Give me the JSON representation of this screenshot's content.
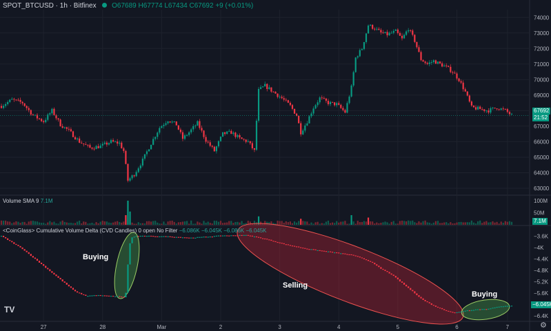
{
  "header": {
    "symbol": "SPOT_BTCUSD · 1h · Bitfinex",
    "open": "O67689",
    "high": "H67774",
    "low": "L67434",
    "close": "C67692",
    "change": "+9 (+0.01%)"
  },
  "volume_pane": {
    "label": "Volume SMA 9",
    "value": "7.1M",
    "tag": "7.1M"
  },
  "cvd_pane": {
    "label": "<CoinGlass> Cumulative Volume Delta (CVD Candles) 0 open No Filter",
    "values": [
      "−6.086K",
      "−6.045K",
      "−6.086K",
      "−6.045K"
    ],
    "tag": "−6.045K"
  },
  "price_tags": {
    "last": "67692",
    "countdown": "21:52"
  },
  "annotations": {
    "buying_left": "Buying",
    "selling": "Selling",
    "buying_right": "Buying"
  },
  "colors": {
    "up": "#089981",
    "down": "#f23645",
    "background": "#131722",
    "grid": "#1e222d",
    "last_line": "#089981"
  },
  "logo": "TV",
  "chart_data": [
    {
      "type": "candlestick",
      "title": "SPOT_BTCUSD · 1h · Bitfinex",
      "x_labels": [
        "27",
        "28",
        "Mar",
        "2",
        "3",
        "4",
        "5",
        "6",
        "7"
      ],
      "y_ticks": [
        63000,
        64000,
        65000,
        66000,
        67000,
        68000,
        69000,
        70000,
        71000,
        72000,
        73000,
        74000
      ],
      "ylim": [
        62600,
        74500
      ],
      "path_close": [
        [
          0,
          68300
        ],
        [
          5,
          68700
        ],
        [
          10,
          68500
        ],
        [
          15,
          67700
        ],
        [
          20,
          67300
        ],
        [
          24,
          68000
        ],
        [
          28,
          67100
        ],
        [
          32,
          66700
        ],
        [
          37,
          66000
        ],
        [
          42,
          65600
        ],
        [
          47,
          65700
        ],
        [
          52,
          66000
        ],
        [
          56,
          65900
        ],
        [
          58,
          65400
        ],
        [
          60,
          63500
        ],
        [
          63,
          63900
        ],
        [
          67,
          64800
        ],
        [
          71,
          65900
        ],
        [
          75,
          66900
        ],
        [
          79,
          67400
        ],
        [
          83,
          67100
        ],
        [
          86,
          66200
        ],
        [
          89,
          66600
        ],
        [
          93,
          67200
        ],
        [
          97,
          66100
        ],
        [
          101,
          65400
        ],
        [
          105,
          66500
        ],
        [
          109,
          66600
        ],
        [
          113,
          66200
        ],
        [
          117,
          66000
        ],
        [
          120,
          65400
        ],
        [
          122,
          69300
        ],
        [
          125,
          69600
        ],
        [
          129,
          69200
        ],
        [
          133,
          68800
        ],
        [
          137,
          68300
        ],
        [
          140,
          67700
        ],
        [
          142,
          66600
        ],
        [
          145,
          67300
        ],
        [
          148,
          68200
        ],
        [
          151,
          68800
        ],
        [
          155,
          68500
        ],
        [
          159,
          68400
        ],
        [
          163,
          67900
        ],
        [
          166,
          69500
        ],
        [
          168,
          71400
        ],
        [
          171,
          72000
        ],
        [
          174,
          73500
        ],
        [
          177,
          73300
        ],
        [
          180,
          73000
        ],
        [
          183,
          72900
        ],
        [
          187,
          73100
        ],
        [
          190,
          72600
        ],
        [
          193,
          73300
        ],
        [
          196,
          72500
        ],
        [
          199,
          71300
        ],
        [
          202,
          71000
        ],
        [
          205,
          71200
        ],
        [
          208,
          71000
        ],
        [
          211,
          70800
        ],
        [
          214,
          70500
        ],
        [
          217,
          70000
        ],
        [
          220,
          69200
        ],
        [
          223,
          68200
        ],
        [
          227,
          68100
        ],
        [
          231,
          68000
        ],
        [
          235,
          68200
        ],
        [
          239,
          68000
        ],
        [
          242,
          67700
        ]
      ]
    },
    {
      "type": "bar",
      "title": "Volume SMA 9",
      "y_ticks": [
        "50M",
        "100M"
      ],
      "ylim": [
        0,
        120
      ],
      "units": "M",
      "spikes": [
        [
          60,
          100
        ],
        [
          61,
          55
        ],
        [
          59,
          40
        ],
        [
          122,
          35
        ],
        [
          166,
          40
        ],
        [
          174,
          30
        ],
        [
          142,
          25
        ]
      ]
    },
    {
      "type": "candlestick",
      "title": "<CoinGlass> Cumulative Volume Delta (CVD Candles) 0 open No Filter",
      "y_ticks": [
        -3.6,
        -4.0,
        -4.4,
        -4.8,
        -5.2,
        -5.6,
        -6.0,
        -6.4
      ],
      "y_tick_labels": [
        "−3.6K",
        "−4K",
        "−4.4K",
        "−4.8K",
        "−5.2K",
        "−5.6K",
        "−6K",
        "−6.4K"
      ],
      "ylim": [
        -6.55,
        -3.4
      ],
      "units": "K",
      "path_close": [
        [
          0,
          -3.6
        ],
        [
          10,
          -4.05
        ],
        [
          20,
          -4.65
        ],
        [
          30,
          -5.25
        ],
        [
          35,
          -5.55
        ],
        [
          40,
          -5.7
        ],
        [
          45,
          -5.68
        ],
        [
          50,
          -5.7
        ],
        [
          55,
          -5.72
        ],
        [
          58,
          -5.75
        ],
        [
          59,
          -5.6
        ],
        [
          60,
          -4.6
        ],
        [
          61,
          -3.85
        ],
        [
          62,
          -3.65
        ],
        [
          64,
          -3.6
        ],
        [
          70,
          -3.6
        ],
        [
          80,
          -3.62
        ],
        [
          90,
          -3.66
        ],
        [
          100,
          -3.61
        ],
        [
          105,
          -3.58
        ],
        [
          110,
          -3.58
        ],
        [
          115,
          -3.56
        ],
        [
          120,
          -3.62
        ],
        [
          125,
          -3.7
        ],
        [
          135,
          -3.9
        ],
        [
          145,
          -4.05
        ],
        [
          155,
          -4.15
        ],
        [
          165,
          -4.25
        ],
        [
          170,
          -4.35
        ],
        [
          175,
          -4.5
        ],
        [
          180,
          -4.75
        ],
        [
          185,
          -4.95
        ],
        [
          190,
          -5.25
        ],
        [
          195,
          -5.55
        ],
        [
          200,
          -5.85
        ],
        [
          205,
          -6.05
        ],
        [
          210,
          -6.2
        ],
        [
          215,
          -6.3
        ],
        [
          220,
          -6.22
        ],
        [
          225,
          -6.18
        ],
        [
          230,
          -6.16
        ],
        [
          235,
          -6.1
        ],
        [
          239,
          -6.05
        ],
        [
          242,
          -6.045
        ]
      ]
    }
  ]
}
